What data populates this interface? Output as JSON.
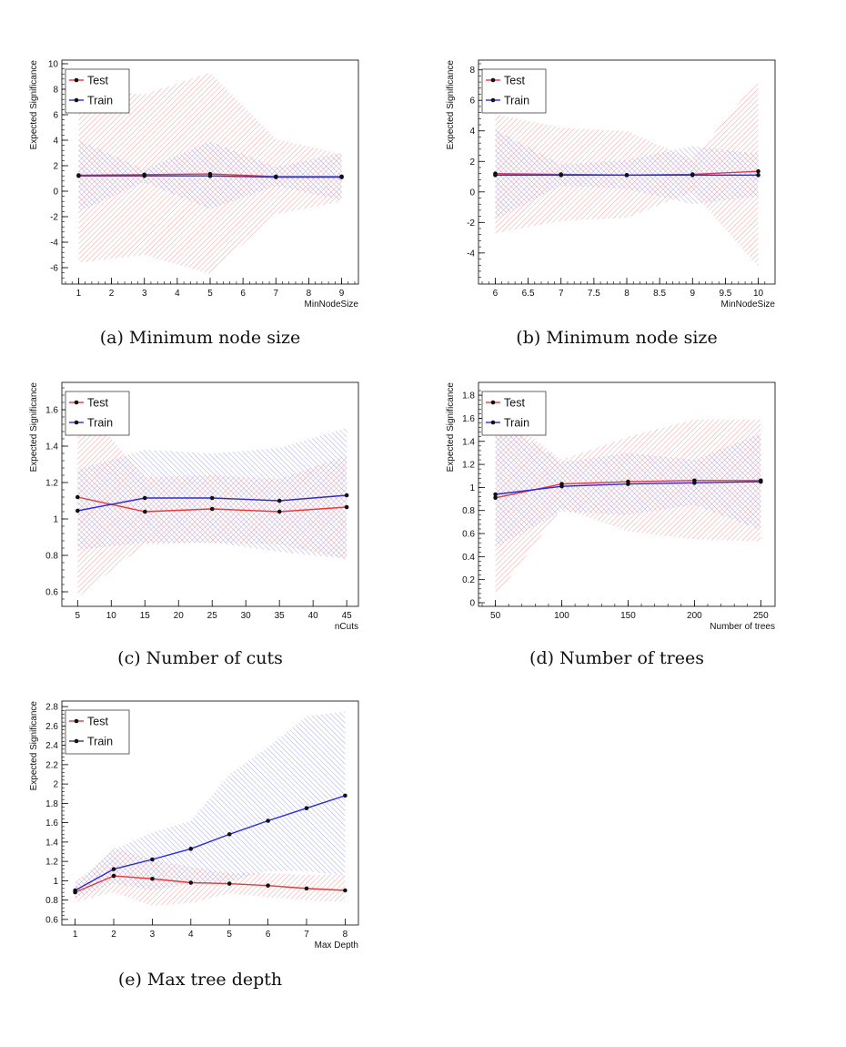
{
  "colors": {
    "test": "#e8393a",
    "train": "#2b2bd6",
    "test_band": "#f2a0a0",
    "train_band": "#a8a8e8",
    "marker": "#111111"
  },
  "chart_data": [
    {
      "type": "line",
      "caption": "(a) Minimum node size",
      "xlabel": "MinNodeSize",
      "ylabel": "Expected Significance",
      "xlim": [
        0.6,
        9.4
      ],
      "ylim": [
        -7,
        10
      ],
      "xticks": [
        1,
        2,
        3,
        4,
        5,
        6,
        7,
        8,
        9
      ],
      "yticks": [
        -6,
        -4,
        -2,
        0,
        2,
        4,
        6,
        8,
        10
      ],
      "x": [
        1,
        3,
        5,
        7,
        9
      ],
      "legend": {
        "position": "top-left",
        "entries": [
          "Test",
          "Train"
        ]
      },
      "series": [
        {
          "name": "Test",
          "values": [
            1.25,
            1.3,
            1.35,
            1.15,
            1.15
          ],
          "band_low": [
            -5.6,
            -5.0,
            -6.5,
            -1.8,
            -0.8
          ],
          "band_high": [
            8.1,
            7.6,
            9.3,
            4.1,
            2.9
          ]
        },
        {
          "name": "Train",
          "values": [
            1.2,
            1.2,
            1.2,
            1.1,
            1.1
          ],
          "band_low": [
            -1.6,
            0.7,
            -1.4,
            0.4,
            -0.7
          ],
          "band_high": [
            4.0,
            1.7,
            3.9,
            1.9,
            3.0
          ]
        }
      ]
    },
    {
      "type": "line",
      "caption": "(b) Minimum node size",
      "xlabel": "MinNodeSize",
      "ylabel": "Expected Significance",
      "xlim": [
        5.8,
        10.2
      ],
      "ylim": [
        -5.8,
        8.4
      ],
      "xticks": [
        6,
        6.5,
        7,
        7.5,
        8,
        8.5,
        9,
        9.5,
        10
      ],
      "yticks": [
        -4,
        -2,
        0,
        2,
        4,
        6,
        8
      ],
      "x": [
        6,
        7,
        8,
        9,
        10
      ],
      "legend": {
        "position": "top-left",
        "entries": [
          "Test",
          "Train"
        ]
      },
      "series": [
        {
          "name": "Test",
          "values": [
            1.2,
            1.15,
            1.1,
            1.15,
            1.35
          ],
          "band_low": [
            -2.7,
            -1.9,
            -1.7,
            0.0,
            -4.9
          ],
          "band_high": [
            5.1,
            4.2,
            4.0,
            2.1,
            7.4
          ]
        },
        {
          "name": "Train",
          "values": [
            1.1,
            1.1,
            1.1,
            1.1,
            1.1
          ],
          "band_low": [
            -1.8,
            0.4,
            0.2,
            -0.8,
            -0.3
          ],
          "band_high": [
            4.1,
            1.8,
            2.1,
            3.0,
            2.5
          ]
        }
      ]
    },
    {
      "type": "line",
      "caption": "(c) Number of cuts",
      "xlabel": "nCuts",
      "ylabel": "Expected Significance",
      "xlim": [
        3.2,
        46.2
      ],
      "ylim": [
        0.54,
        1.73
      ],
      "xticks": [
        5,
        10,
        15,
        20,
        25,
        30,
        35,
        40,
        45
      ],
      "yticks": [
        0.6,
        0.8,
        1.0,
        1.2,
        1.4,
        1.6
      ],
      "ytick_labels": [
        "0.6",
        "0.8",
        "1",
        "1.2",
        "1.4",
        "1.6"
      ],
      "x": [
        5,
        15,
        25,
        35,
        45
      ],
      "legend": {
        "position": "top-left",
        "entries": [
          "Test",
          "Train"
        ]
      },
      "series": [
        {
          "name": "Test",
          "values": [
            1.12,
            1.04,
            1.055,
            1.04,
            1.065
          ],
          "band_low": [
            0.57,
            0.86,
            0.87,
            0.86,
            0.78
          ],
          "band_high": [
            1.65,
            1.23,
            1.24,
            1.22,
            1.35
          ]
        },
        {
          "name": "Train",
          "values": [
            1.045,
            1.115,
            1.115,
            1.1,
            1.13
          ],
          "band_low": [
            0.83,
            0.87,
            0.87,
            0.82,
            0.78
          ],
          "band_high": [
            1.27,
            1.38,
            1.36,
            1.39,
            1.5
          ]
        }
      ]
    },
    {
      "type": "line",
      "caption": "(d) Number of trees",
      "xlabel": "Number of trees",
      "ylabel": "Expected Significance",
      "xlim": [
        40,
        258
      ],
      "ylim": [
        0,
        1.88
      ],
      "xticks": [
        50,
        100,
        150,
        200,
        250
      ],
      "yticks": [
        0,
        0.2,
        0.4,
        0.6,
        0.8,
        1.0,
        1.2,
        1.4,
        1.6,
        1.8
      ],
      "ytick_labels": [
        "0",
        "0.2",
        "0.4",
        "0.6",
        "0.8",
        "1",
        "1.2",
        "1.4",
        "1.6",
        "1.8"
      ],
      "x": [
        50,
        100,
        150,
        200,
        250
      ],
      "legend": {
        "position": "top-left",
        "entries": [
          "Test",
          "Train"
        ]
      },
      "series": [
        {
          "name": "Test",
          "values": [
            0.91,
            1.03,
            1.05,
            1.06,
            1.06
          ],
          "band_low": [
            0.05,
            0.82,
            0.62,
            0.55,
            0.53
          ],
          "band_high": [
            1.68,
            1.24,
            1.44,
            1.59,
            1.59
          ]
        },
        {
          "name": "Train",
          "values": [
            0.94,
            1.01,
            1.03,
            1.04,
            1.05
          ],
          "band_low": [
            0.48,
            0.79,
            0.76,
            0.85,
            0.63
          ],
          "band_high": [
            1.6,
            1.22,
            1.3,
            1.24,
            1.47
          ]
        }
      ]
    },
    {
      "type": "line",
      "caption": "(e) Max tree depth",
      "xlabel": "Max Depth",
      "ylabel": "Expected Significance",
      "xlim": [
        0.75,
        8.25
      ],
      "ylim": [
        0.58,
        2.82
      ],
      "xticks": [
        1,
        2,
        3,
        4,
        5,
        6,
        7,
        8
      ],
      "yticks": [
        0.6,
        0.8,
        1.0,
        1.2,
        1.4,
        1.6,
        1.8,
        2.0,
        2.2,
        2.4,
        2.6,
        2.8
      ],
      "ytick_labels": [
        "0.6",
        "0.8",
        "1",
        "1.2",
        "1.4",
        "1.6",
        "1.8",
        "2",
        "2.2",
        "2.4",
        "2.6",
        "2.8"
      ],
      "x": [
        1,
        2,
        3,
        4,
        5,
        6,
        7,
        8
      ],
      "legend": {
        "position": "top-left",
        "entries": [
          "Test",
          "Train"
        ]
      },
      "series": [
        {
          "name": "Test",
          "values": [
            0.88,
            1.05,
            1.02,
            0.98,
            0.97,
            0.95,
            0.92,
            0.9
          ],
          "band_low": [
            0.78,
            0.88,
            0.74,
            0.77,
            0.87,
            0.83,
            0.8,
            0.78
          ],
          "band_high": [
            0.98,
            1.34,
            1.22,
            1.14,
            1.08,
            1.08,
            1.06,
            1.06
          ]
        },
        {
          "name": "Train",
          "values": [
            0.9,
            1.12,
            1.22,
            1.33,
            1.48,
            1.62,
            1.75,
            1.88
          ],
          "band_low": [
            0.82,
            0.97,
            0.9,
            0.97,
            0.99,
            1.1,
            1.1,
            1.05
          ],
          "band_high": [
            0.98,
            1.32,
            1.5,
            1.62,
            2.1,
            2.38,
            2.7,
            2.75
          ]
        }
      ]
    }
  ]
}
